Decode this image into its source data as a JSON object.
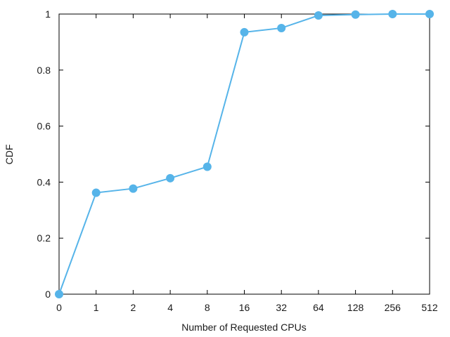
{
  "chart_data": {
    "type": "line",
    "xlabel": "Number of Requested CPUs",
    "ylabel": "CDF",
    "x": [
      "0",
      "1",
      "2",
      "4",
      "8",
      "16",
      "32",
      "64",
      "128",
      "256",
      "512"
    ],
    "series": [
      {
        "values": [
          0.0,
          0.362,
          0.377,
          0.414,
          0.455,
          0.935,
          0.95,
          0.995,
          0.998,
          1.0,
          1.0
        ],
        "color": "#56b4e9"
      }
    ],
    "ylim": [
      0,
      1
    ],
    "yticks": [
      "0",
      "0.2",
      "0.4",
      "0.6",
      "0.8",
      "1"
    ],
    "grid": false,
    "marker": "circle"
  }
}
